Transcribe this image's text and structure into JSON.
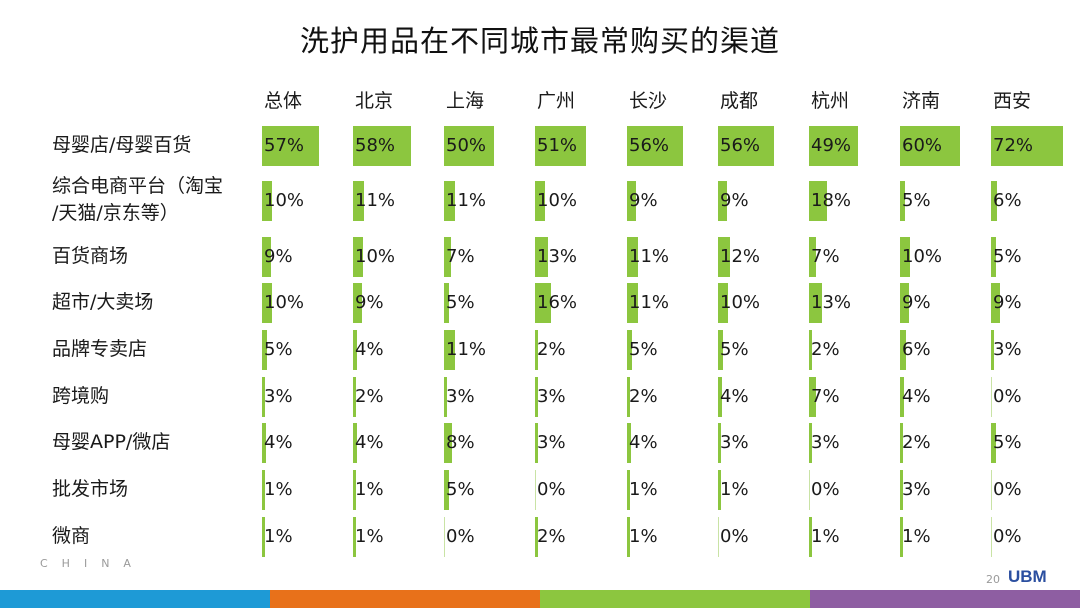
{
  "title": "洗护用品在不同城市最常购买的渠道",
  "chart_data": {
    "type": "table",
    "title": "洗护用品在不同城市最常购买的渠道",
    "columns": [
      "总体",
      "北京",
      "上海",
      "广州",
      "长沙",
      "成都",
      "杭州",
      "济南",
      "西安"
    ],
    "rows": [
      {
        "label": [
          "母婴店/母婴百货"
        ],
        "values": [
          57,
          58,
          50,
          51,
          56,
          56,
          49,
          60,
          72
        ]
      },
      {
        "label": [
          "综合电商平台（淘宝",
          "/天猫/京东等）"
        ],
        "values": [
          10,
          11,
          11,
          10,
          9,
          9,
          18,
          5,
          6
        ]
      },
      {
        "label": [
          "百货商场"
        ],
        "values": [
          9,
          10,
          7,
          13,
          11,
          12,
          7,
          10,
          5
        ]
      },
      {
        "label": [
          "超市/大卖场"
        ],
        "values": [
          10,
          9,
          5,
          16,
          11,
          10,
          13,
          9,
          9
        ]
      },
      {
        "label": [
          "品牌专卖店"
        ],
        "values": [
          5,
          4,
          11,
          2,
          5,
          5,
          2,
          6,
          3
        ]
      },
      {
        "label": [
          "跨境购"
        ],
        "values": [
          3,
          2,
          3,
          3,
          2,
          4,
          7,
          4,
          0
        ]
      },
      {
        "label": [
          "母婴APP/微店"
        ],
        "values": [
          4,
          4,
          8,
          3,
          4,
          3,
          3,
          2,
          5
        ]
      },
      {
        "label": [
          "批发市场"
        ],
        "values": [
          1,
          1,
          5,
          0,
          1,
          1,
          0,
          3,
          0
        ]
      },
      {
        "label": [
          "微商"
        ],
        "values": [
          1,
          1,
          0,
          2,
          1,
          0,
          1,
          1,
          0
        ]
      }
    ],
    "value_suffix": "%",
    "bar_color": "#8cc63f"
  },
  "footer": {
    "page_number": "20",
    "logo_text": "UBM",
    "watermark_text": "CHINA",
    "stripe_colors": [
      "#1e9ad6",
      "#e8711a",
      "#8cc63f",
      "#8e5ea2"
    ]
  }
}
